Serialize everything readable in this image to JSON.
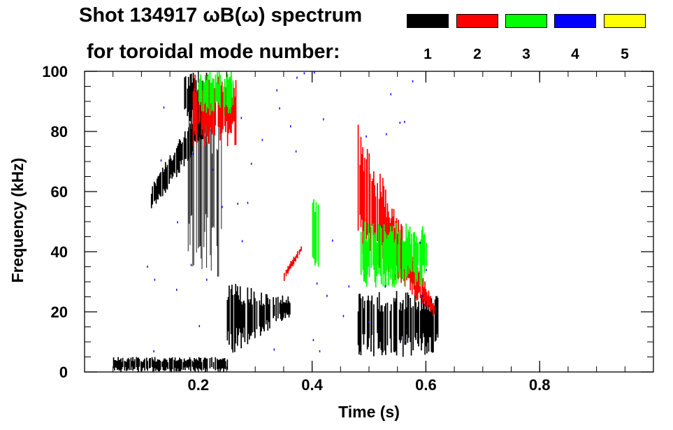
{
  "chart_data": {
    "type": "spectrogram",
    "title_line1": "Shot 134917 ωB(ω) spectrum",
    "title_line2": "for toroidal mode number:",
    "xlabel": "Time (s)",
    "ylabel": "Frequency (kHz)",
    "xlim": [
      0.0,
      1.0
    ],
    "ylim": [
      0,
      100
    ],
    "x_ticks": [
      0.2,
      0.4,
      0.6,
      0.8
    ],
    "x_tick_labels": [
      "0.2",
      "0.4",
      "0.6",
      "0.8"
    ],
    "y_ticks": [
      0,
      20,
      40,
      60,
      80,
      100
    ],
    "y_tick_labels": [
      "0",
      "20",
      "40",
      "60",
      "80",
      "100"
    ],
    "legend": [
      {
        "mode": "1",
        "color": "#000000"
      },
      {
        "mode": "2",
        "color": "#ff0000"
      },
      {
        "mode": "3",
        "color": "#00ff00"
      },
      {
        "mode": "4",
        "color": "#0000ff"
      },
      {
        "mode": "5",
        "color": "#ffff00"
      }
    ],
    "regions": [
      {
        "name": "n1-early-chirp",
        "mode": "1",
        "t": [
          0.115,
          0.21
        ],
        "f_start": [
          52,
          62
        ],
        "f_end": [
          78,
          92
        ]
      },
      {
        "name": "n1-upper-burst",
        "mode": "1",
        "t": [
          0.175,
          0.215
        ],
        "f": [
          82,
          100
        ]
      },
      {
        "name": "n1-vertical-streaks",
        "mode": "1",
        "t": [
          0.18,
          0.24
        ],
        "f": [
          30,
          95
        ]
      },
      {
        "name": "n1-lowfreq-early",
        "mode": "1",
        "t": [
          0.05,
          0.25
        ],
        "f": [
          0,
          5
        ]
      },
      {
        "name": "n1-rising-band",
        "mode": "1",
        "t": [
          0.25,
          0.36
        ],
        "f_start": [
          5,
          30
        ],
        "f_end": [
          18,
          25
        ]
      },
      {
        "name": "n1-late-band",
        "mode": "1",
        "t": [
          0.48,
          0.62
        ],
        "f": [
          5,
          28
        ]
      },
      {
        "name": "n2-high-burst",
        "mode": "2",
        "t": [
          0.19,
          0.265
        ],
        "f": [
          75,
          100
        ]
      },
      {
        "name": "n2-chirp",
        "mode": "2",
        "t": [
          0.35,
          0.38
        ],
        "f_start": [
          30,
          34
        ],
        "f_end": [
          40,
          42
        ]
      },
      {
        "name": "n2-late-sweep",
        "mode": "2",
        "t": [
          0.48,
          0.615
        ],
        "f_start": [
          40,
          85
        ],
        "f_end": [
          18,
          22
        ]
      },
      {
        "name": "n3-high",
        "mode": "3",
        "t": [
          0.2,
          0.26
        ],
        "f": [
          85,
          100
        ]
      },
      {
        "name": "n3-mid",
        "mode": "3",
        "t": [
          0.4,
          0.41
        ],
        "f": [
          35,
          58
        ]
      },
      {
        "name": "n3-late",
        "mode": "3",
        "t": [
          0.485,
          0.6
        ],
        "f": [
          28,
          50
        ]
      },
      {
        "name": "n4-points",
        "mode": "4",
        "t": [
          0.1,
          0.6
        ],
        "f": [
          5,
          100
        ]
      }
    ]
  }
}
